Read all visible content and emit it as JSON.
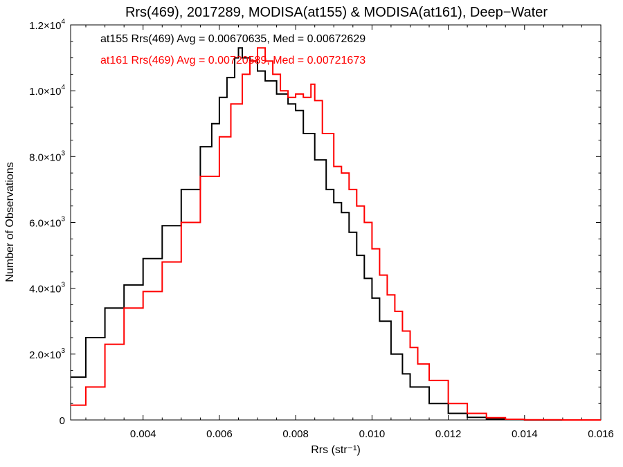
{
  "chart_data": {
    "type": "line",
    "title": "Rrs(469), 2017289, MODISA(at155) & MODISA(at161), Deep−Water",
    "xlabel": "Rrs (str⁻¹)",
    "ylabel": "Number of Observations",
    "xlim": [
      0.0021,
      0.016
    ],
    "ylim": [
      0,
      12000
    ],
    "x_ticks": [
      0.004,
      0.006,
      0.008,
      0.01,
      0.012,
      0.014,
      0.016
    ],
    "x_tick_labels": [
      "0.004",
      "0.006",
      "0.008",
      "0.010",
      "0.012",
      "0.014",
      "0.016"
    ],
    "y_ticks": [
      0,
      2000,
      4000,
      6000,
      8000,
      10000,
      12000
    ],
    "y_tick_labels": [
      {
        "mant": "0",
        "exp": ""
      },
      {
        "mant": "2.0×10",
        "exp": "3"
      },
      {
        "mant": "4.0×10",
        "exp": "3"
      },
      {
        "mant": "6.0×10",
        "exp": "3"
      },
      {
        "mant": "8.0×10",
        "exp": "3"
      },
      {
        "mant": "1.0×10",
        "exp": "4"
      },
      {
        "mant": "1.2×10",
        "exp": "4"
      }
    ],
    "grid": false,
    "legend_position": "top-left",
    "series": [
      {
        "name": "at155 Rrs(469) Avg = 0.00670635, Med = 0.00672629",
        "color": "#000000",
        "style": "step",
        "x": [
          0.0021,
          0.0025,
          0.003,
          0.0035,
          0.004,
          0.0045,
          0.005,
          0.0055,
          0.0058,
          0.006,
          0.0062,
          0.0064,
          0.0065,
          0.0066,
          0.0068,
          0.007,
          0.0072,
          0.0075,
          0.0078,
          0.008,
          0.0082,
          0.0085,
          0.0088,
          0.009,
          0.0092,
          0.0094,
          0.0096,
          0.0098,
          0.01,
          0.0102,
          0.0105,
          0.0108,
          0.011,
          0.0115,
          0.012,
          0.0125,
          0.013,
          0.0135,
          0.014,
          0.015,
          0.016
        ],
        "y": [
          1300,
          2500,
          3400,
          4100,
          4900,
          5900,
          7000,
          8300,
          9000,
          9800,
          10400,
          11000,
          11300,
          11000,
          10900,
          10600,
          10300,
          9900,
          9600,
          9400,
          8700,
          7900,
          7000,
          6600,
          6300,
          5700,
          5000,
          4300,
          3700,
          3000,
          2000,
          1400,
          1000,
          500,
          200,
          80,
          30,
          10,
          0,
          0,
          0
        ]
      },
      {
        "name": "at161 Rrs(469) Avg = 0.00720589, Med = 0.00721673",
        "color": "#ff0000",
        "style": "step",
        "x": [
          0.0021,
          0.0025,
          0.003,
          0.0035,
          0.004,
          0.0045,
          0.005,
          0.0055,
          0.006,
          0.0063,
          0.0066,
          0.0068,
          0.007,
          0.0072,
          0.0074,
          0.0076,
          0.0078,
          0.008,
          0.0082,
          0.0084,
          0.0085,
          0.0087,
          0.009,
          0.0092,
          0.0094,
          0.0096,
          0.0098,
          0.01,
          0.0102,
          0.0104,
          0.0106,
          0.0108,
          0.011,
          0.0112,
          0.0115,
          0.012,
          0.0125,
          0.013,
          0.0135,
          0.014,
          0.015,
          0.016
        ],
        "y": [
          450,
          1000,
          2300,
          3400,
          3900,
          4800,
          6000,
          7400,
          8600,
          9600,
          10500,
          10900,
          11300,
          10900,
          10500,
          10000,
          9800,
          9900,
          9800,
          10200,
          9700,
          8700,
          7700,
          7500,
          7000,
          6500,
          6000,
          5200,
          4400,
          3800,
          3300,
          2700,
          2200,
          1700,
          1200,
          500,
          200,
          70,
          20,
          5,
          0,
          0
        ]
      }
    ]
  }
}
